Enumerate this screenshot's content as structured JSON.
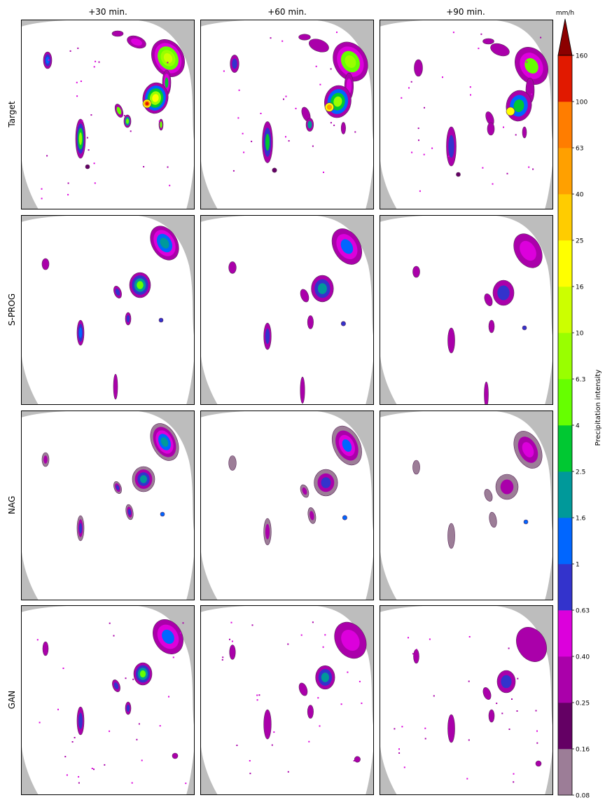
{
  "chart_data": {
    "type": "heatmap",
    "description": "Precipitation nowcast comparison grid (lead times vs. models)",
    "columns": [
      "+30 min.",
      "+60 min.",
      "+90 min."
    ],
    "rows": [
      "Target",
      "S-PROG",
      "NAG",
      "GAN"
    ],
    "colorbar": {
      "unit": "mm/h",
      "label": "Precipitation intensity",
      "extend": "max",
      "ticks": [
        "0.08",
        "0.16",
        "0.25",
        "0.40",
        "0.63",
        "1",
        "1.6",
        "2.5",
        "4",
        "6.3",
        "10",
        "16",
        "25",
        "40",
        "63",
        "100",
        "160"
      ],
      "colors": [
        "#9c7d97",
        "#640064",
        "#aa00aa",
        "#dc00dc",
        "#3333cc",
        "#0066ff",
        "#00999a",
        "#00c832",
        "#66ff00",
        "#99ff00",
        "#ccff00",
        "#ffff00",
        "#ffcc00",
        "#ffa000",
        "#ff7d00",
        "#e11900"
      ],
      "extend_color": "#8c0000"
    },
    "background": {
      "no_data": "#bdbdbd",
      "domain": "#ffffff"
    }
  }
}
